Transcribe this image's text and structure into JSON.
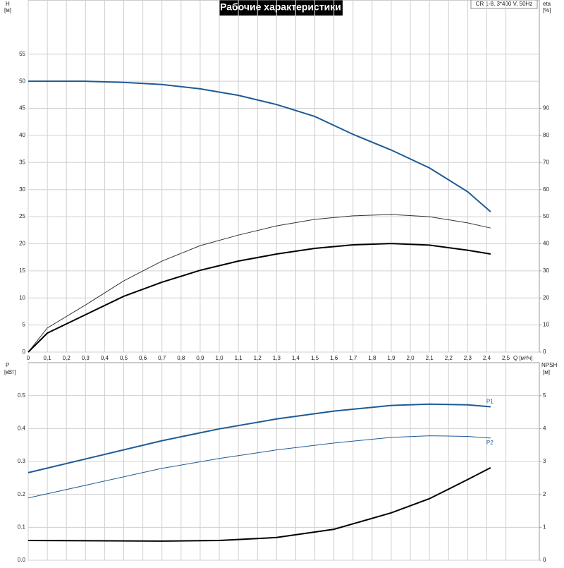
{
  "chart_data": [
    {
      "type": "line",
      "title": "Рабочие характеристики",
      "subtitle": "CR 1-8, 3*400 V, 50Hz",
      "ylabel": "H",
      "yunit": "[м]",
      "y2label": "eta",
      "y2unit": "[%]",
      "xlabel": "Q [м³/ч]",
      "x": [
        0,
        0.1,
        0.3,
        0.5,
        0.7,
        0.9,
        1.1,
        1.3,
        1.5,
        1.7,
        1.9,
        2.1,
        2.3,
        2.42
      ],
      "xlim": [
        0,
        2.675
      ],
      "xticks": [
        0,
        {
          "value": 0.1,
          "label": "0,1"
        },
        {
          "value": 0.2,
          "label": "0,2"
        },
        {
          "value": 0.3,
          "label": "0,3"
        },
        {
          "value": 0.4,
          "label": "0,4"
        },
        {
          "value": 0.5,
          "label": "0,5"
        },
        {
          "value": 0.6,
          "label": "0,6"
        },
        {
          "value": 0.7,
          "label": "0,7"
        },
        {
          "value": 0.8,
          "label": "0,8"
        },
        {
          "value": 0.9,
          "label": "0,9"
        },
        {
          "value": 1.0,
          "label": "1,0"
        },
        {
          "value": 1.1,
          "label": "1,1"
        },
        {
          "value": 1.2,
          "label": "1,2"
        },
        {
          "value": 1.3,
          "label": "1,3"
        },
        {
          "value": 1.4,
          "label": "1,4"
        },
        {
          "value": 1.5,
          "label": "1,5"
        },
        {
          "value": 1.6,
          "label": "1,6"
        },
        {
          "value": 1.7,
          "label": "1,7"
        },
        {
          "value": 1.8,
          "label": "1,8"
        },
        {
          "value": 1.9,
          "label": "1,9"
        },
        {
          "value": 2.0,
          "label": "2,0"
        },
        {
          "value": 2.1,
          "label": "2,1"
        },
        {
          "value": 2.2,
          "label": "2,2"
        },
        {
          "value": 2.3,
          "label": "2,3"
        },
        {
          "value": 2.4,
          "label": "2,4"
        },
        {
          "value": 2.5,
          "label": "2,5"
        }
      ],
      "ylim": [
        0,
        65
      ],
      "yticks": [
        0,
        5,
        10,
        15,
        20,
        25,
        30,
        35,
        40,
        45,
        50,
        55
      ],
      "y2lim": [
        0,
        130
      ],
      "y2ticks": [
        0,
        10,
        20,
        30,
        40,
        50,
        60,
        70,
        80,
        90
      ],
      "grid": true,
      "series": [
        {
          "color": "#1f5a96",
          "width": 2,
          "values": [
            50,
            50,
            50,
            49.8,
            49.4,
            48.6,
            47.4,
            45.7,
            43.5,
            40.2,
            37.3,
            34.0,
            29.6,
            25.9
          ]
        },
        {
          "color": "#333333",
          "width": 1,
          "axis": "y2",
          "values": [
            0,
            8.9,
            17.4,
            26.3,
            33.6,
            39.3,
            43.2,
            46.6,
            49,
            50.3,
            50.8,
            50,
            47.7,
            45.8
          ]
        },
        {
          "color": "#000000",
          "width": 2,
          "axis": "y2",
          "values": [
            0,
            7,
            13.8,
            20.6,
            25.8,
            30.2,
            33.6,
            36.2,
            38.3,
            39.6,
            40.1,
            39.5,
            37.6,
            36.2
          ]
        }
      ]
    },
    {
      "type": "line",
      "ylabel": "P",
      "yunit": "[кВт]",
      "y2label": "NPSH",
      "y2unit": "[м]",
      "x": [
        0,
        0.7,
        1.0,
        1.3,
        1.6,
        1.9,
        2.1,
        2.3,
        2.42
      ],
      "ylim": [
        0,
        0.6
      ],
      "yticks": [
        {
          "value": 0,
          "label": "0.0"
        },
        0.1,
        0.2,
        0.3,
        0.4,
        0.5
      ],
      "y2lim": [
        0,
        6
      ],
      "y2ticks": [
        0,
        1,
        2,
        3,
        4,
        5
      ],
      "grid": true,
      "series": [
        {
          "name": "P1",
          "color": "#1f5a96",
          "width": 2,
          "values": [
            0.266,
            0.363,
            0.399,
            0.429,
            0.453,
            0.47,
            0.474,
            0.472,
            0.466
          ]
        },
        {
          "name": "P2",
          "color": "#1f5a96",
          "width": 1,
          "values": [
            0.189,
            0.279,
            0.309,
            0.335,
            0.356,
            0.373,
            0.378,
            0.376,
            0.371
          ]
        },
        {
          "color": "#000000",
          "width": 2,
          "axis": "y2",
          "values": [
            0.6,
            0.58,
            0.6,
            0.69,
            0.94,
            1.44,
            1.87,
            2.45,
            2.81
          ]
        }
      ]
    }
  ]
}
